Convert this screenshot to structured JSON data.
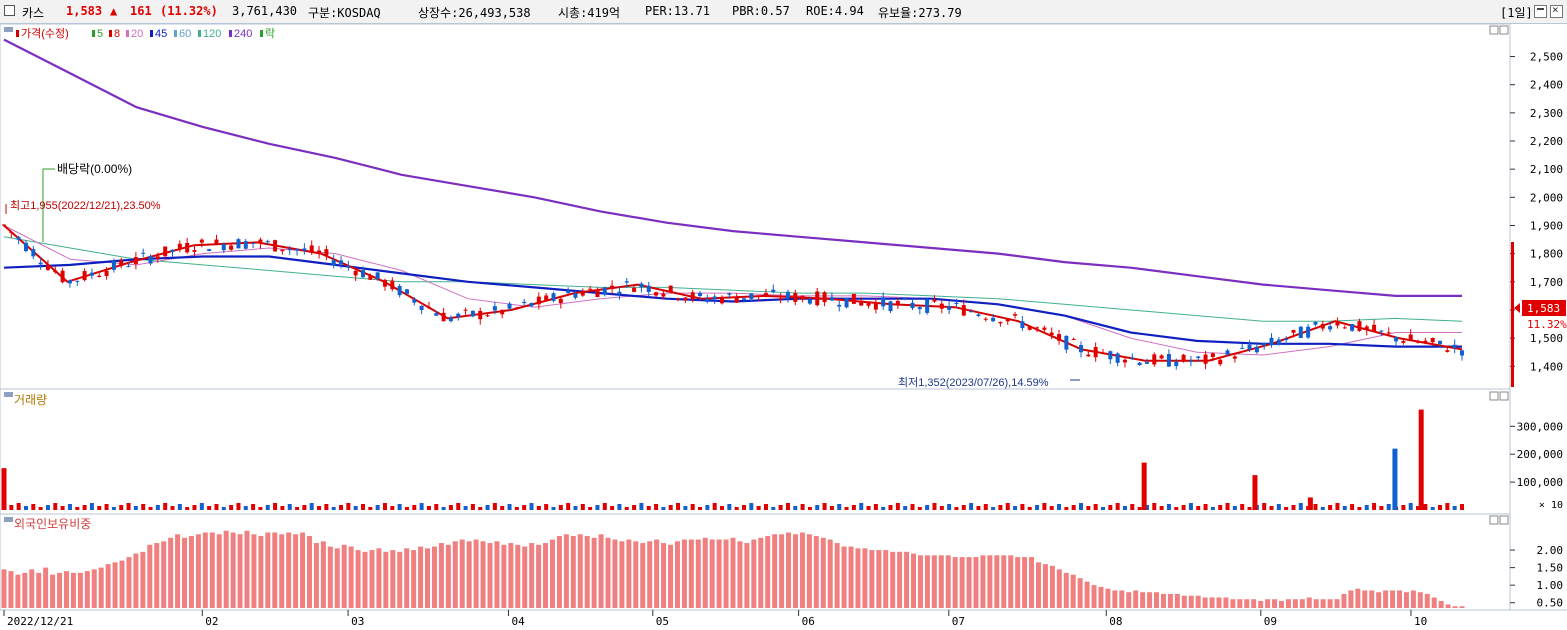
{
  "header": {
    "stock_name": "카스",
    "price": "1,583",
    "change_arrow": "▲",
    "change": "161",
    "change_pct": "(11.32%)",
    "volume": "3,761,430",
    "market": "구분:KOSDAQ",
    "shares": "상장수:26,493,538",
    "market_cap": "시총:419억",
    "per": "PER:13.71",
    "pbr": "PBR:0.57",
    "roe": "ROE:4.94",
    "float_ratio": "유보율:273.79",
    "period": "[1일]"
  },
  "chart_data": [
    {
      "type": "candlestick",
      "title": "가격(수정)",
      "legend": [
        {
          "label": "가격(수정)",
          "color": "#d40000"
        },
        {
          "label": "5",
          "color": "#2aa02a"
        },
        {
          "label": "8",
          "color": "#d40000"
        },
        {
          "label": "20",
          "color": "#d070c0"
        },
        {
          "label": "45",
          "color": "#1020c0"
        },
        {
          "label": "60",
          "color": "#60a0c8"
        },
        {
          "label": "120",
          "color": "#40b090"
        },
        {
          "label": "240",
          "color": "#7b2ec0"
        },
        {
          "label": "락",
          "color": "#2aa02a"
        }
      ],
      "ylim": [
        1330,
        2580
      ],
      "yticks": [
        "2,500",
        "2,400",
        "2,300",
        "2,200",
        "2,100",
        "2,000",
        "1,900",
        "1,800",
        "1,700",
        "1,600",
        "1,500",
        "1,400"
      ],
      "ytick_values": [
        2500,
        2400,
        2300,
        2200,
        2100,
        2000,
        1900,
        1800,
        1700,
        1600,
        1500,
        1400
      ],
      "annotations": {
        "dividend": "배당락(0.00%)",
        "high": "최고1,955(2022/12/21),23.50%",
        "low": "최저1,352(2023/07/26),14.59%"
      },
      "last_price": "1,583",
      "last_pct": "11.32%",
      "ma240": [
        2560,
        2440,
        2320,
        2250,
        2190,
        2140,
        2080,
        2040,
        2000,
        1950,
        1910,
        1880,
        1860,
        1840,
        1820,
        1800,
        1770,
        1750,
        1720,
        1690,
        1670,
        1650,
        1650
      ],
      "ma120": [
        1860,
        1820,
        1780,
        1760,
        1740,
        1720,
        1700,
        1700,
        1690,
        1680,
        1680,
        1670,
        1660,
        1660,
        1650,
        1640,
        1620,
        1600,
        1580,
        1560,
        1560,
        1570,
        1560
      ],
      "ma45": [
        1750,
        1760,
        1780,
        1790,
        1790,
        1760,
        1730,
        1700,
        1680,
        1660,
        1640,
        1630,
        1640,
        1640,
        1640,
        1620,
        1580,
        1520,
        1490,
        1480,
        1480,
        1470,
        1470
      ],
      "ma8": [
        1900,
        1700,
        1770,
        1830,
        1840,
        1800,
        1700,
        1570,
        1600,
        1660,
        1690,
        1640,
        1650,
        1640,
        1620,
        1610,
        1560,
        1460,
        1420,
        1420,
        1480,
        1560,
        1500,
        1460
      ],
      "ma20": [
        1900,
        1780,
        1760,
        1800,
        1820,
        1800,
        1740,
        1640,
        1610,
        1640,
        1660,
        1660,
        1650,
        1650,
        1640,
        1620,
        1580,
        1500,
        1450,
        1440,
        1470,
        1520,
        1520
      ]
    },
    {
      "type": "bar",
      "title": "거래량",
      "yticks": [
        "300,000",
        "200,000",
        "100,000"
      ],
      "ytick_values": [
        300000,
        200000,
        100000
      ],
      "unit": "× 10",
      "ymax": 380000,
      "spikes": [
        {
          "at": 0.0,
          "value": 150000,
          "dir": "up"
        },
        {
          "at": 0.782,
          "value": 170000,
          "dir": "up"
        },
        {
          "at": 0.858,
          "value": 125000,
          "dir": "up"
        },
        {
          "at": 0.896,
          "value": 45000,
          "dir": "up"
        },
        {
          "at": 0.954,
          "value": 220000,
          "dir": "down"
        },
        {
          "at": 0.972,
          "value": 360000,
          "dir": "up"
        }
      ]
    },
    {
      "type": "bar",
      "title": "외국인보유비중",
      "yticks": [
        "2.00",
        "1.50",
        "1.00",
        "0.50"
      ],
      "ytick_values": [
        2.0,
        1.5,
        1.0,
        0.5
      ],
      "ylim": [
        0.35,
        2.6
      ],
      "values": [
        1.45,
        1.4,
        1.3,
        1.35,
        1.45,
        1.35,
        1.5,
        1.3,
        1.35,
        1.4,
        1.35,
        1.35,
        1.4,
        1.45,
        1.5,
        1.6,
        1.65,
        1.7,
        1.8,
        1.9,
        1.95,
        2.15,
        2.2,
        2.25,
        2.35,
        2.45,
        2.35,
        2.4,
        2.45,
        2.5,
        2.5,
        2.45,
        2.55,
        2.5,
        2.45,
        2.55,
        2.45,
        2.4,
        2.5,
        2.5,
        2.45,
        2.5,
        2.45,
        2.5,
        2.4,
        2.2,
        2.25,
        2.1,
        2.05,
        2.15,
        2.1,
        2.0,
        1.95,
        2.0,
        2.05,
        1.95,
        2.0,
        1.95,
        2.05,
        2.0,
        2.1,
        2.05,
        2.1,
        2.2,
        2.15,
        2.25,
        2.3,
        2.25,
        2.3,
        2.25,
        2.2,
        2.25,
        2.15,
        2.2,
        2.15,
        2.1,
        2.2,
        2.15,
        2.2,
        2.3,
        2.4,
        2.45,
        2.4,
        2.45,
        2.4,
        2.35,
        2.45,
        2.35,
        2.3,
        2.25,
        2.3,
        2.25,
        2.2,
        2.25,
        2.3,
        2.2,
        2.15,
        2.25,
        2.3,
        2.3,
        2.3,
        2.35,
        2.3,
        2.3,
        2.3,
        2.35,
        2.25,
        2.2,
        2.3,
        2.35,
        2.4,
        2.45,
        2.45,
        2.5,
        2.45,
        2.5,
        2.45,
        2.4,
        2.35,
        2.3,
        2.2,
        2.1,
        2.1,
        2.05,
        2.05,
        2.0,
        2.0,
        2.0,
        1.95,
        1.95,
        1.95,
        1.9,
        1.85,
        1.85,
        1.85,
        1.85,
        1.85,
        1.8,
        1.8,
        1.8,
        1.8,
        1.85,
        1.85,
        1.85,
        1.85,
        1.85,
        1.8,
        1.8,
        1.8,
        1.65,
        1.6,
        1.55,
        1.45,
        1.35,
        1.3,
        1.2,
        1.1,
        1.0,
        0.95,
        0.9,
        0.85,
        0.85,
        0.8,
        0.85,
        0.8,
        0.8,
        0.8,
        0.75,
        0.75,
        0.75,
        0.7,
        0.7,
        0.7,
        0.65,
        0.65,
        0.65,
        0.65,
        0.6,
        0.6,
        0.6,
        0.6,
        0.55,
        0.6,
        0.6,
        0.55,
        0.6,
        0.6,
        0.6,
        0.65,
        0.6,
        0.6,
        0.6,
        0.6,
        0.75,
        0.85,
        0.9,
        0.85,
        0.85,
        0.8,
        0.85,
        0.85,
        0.85,
        0.8,
        0.85,
        0.8,
        0.75,
        0.65,
        0.55,
        0.45,
        0.4,
        0.4
      ]
    }
  ],
  "x_axis_labels": [
    {
      "label": "2022/12/21",
      "at": 0.0
    },
    {
      "label": "02",
      "at": 0.136
    },
    {
      "label": "03",
      "at": 0.236
    },
    {
      "label": "04",
      "at": 0.346
    },
    {
      "label": "05",
      "at": 0.445
    },
    {
      "label": "06",
      "at": 0.545
    },
    {
      "label": "07",
      "at": 0.648
    },
    {
      "label": "08",
      "at": 0.756
    },
    {
      "label": "09",
      "at": 0.862
    },
    {
      "label": "10",
      "at": 0.965
    }
  ]
}
